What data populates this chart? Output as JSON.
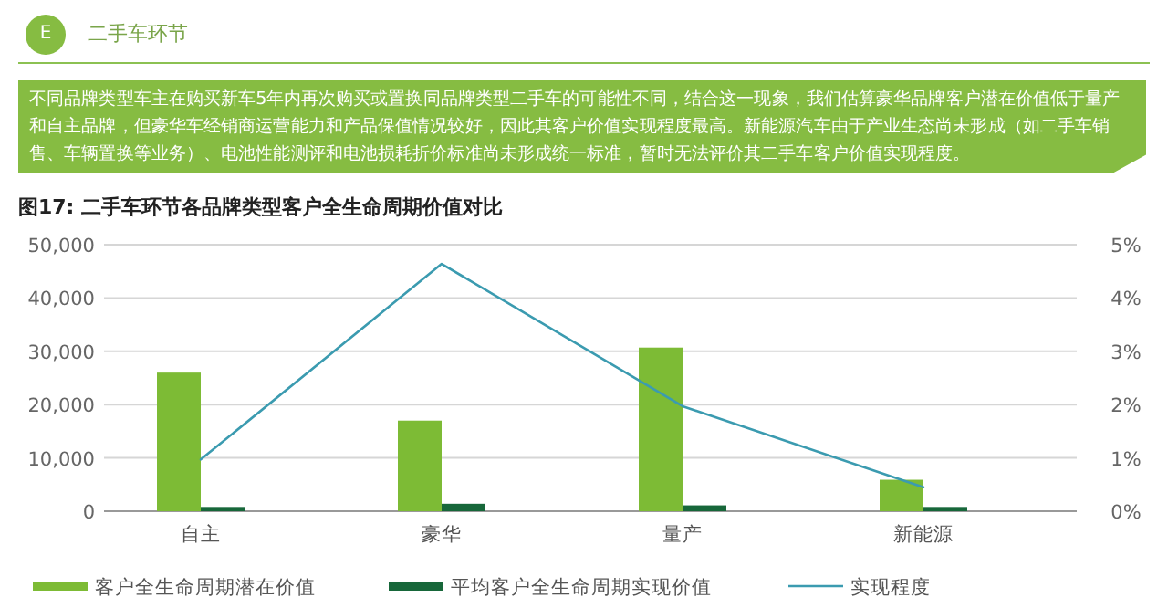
{
  "chart_data": {
    "type": "bar",
    "title": "图17: 二手车环节各品牌类型客户全生命周期价值对比",
    "annotations": [
      "E",
      "二手车环节",
      "不同品牌类型车主在购买新车5年内再次购买或置换同品牌类型二手车的可能性不同，结合这一现象，我们估算豪华品牌客户潜在价值低于量产和自主品牌，但豪华车经销商运营能力和产品保值情况较好，因此其客户价值实现程度最高。新能源汽车由于产业生态尚未形成（如二手车销售、车辆置换等业务）、电池性能测评和电池损耗折价标准尚未形成统一标准，暂时无法评价其二手车客户价值实现程度。"
    ],
    "categories": [
      "自主",
      "豪华",
      "量产",
      "新能源"
    ],
    "series": [
      {
        "name": "客户全生命周期潜在价值",
        "color": "#7dbb35",
        "values": [
          26000,
          17000,
          30700,
          5900
        ]
      },
      {
        "name": "平均客户全生命周期实现价值",
        "color": "#17673a",
        "values": [
          800,
          1400,
          1100,
          800
        ]
      },
      {
        "name": "实现程度",
        "type": "line",
        "axis": "y2",
        "color": "#3b9bb0",
        "values": [
          0.97,
          4.64,
          1.97,
          0.45
        ]
      }
    ],
    "ylim": [
      0,
      50000
    ],
    "yticks": [
      {
        "value": 0,
        "label": "0"
      },
      {
        "value": 10000,
        "label": "10,000"
      },
      {
        "value": 20000,
        "label": "20,000"
      },
      {
        "value": 30000,
        "label": "30,000"
      },
      {
        "value": 40000,
        "label": "40,000"
      },
      {
        "value": 50000,
        "label": "50,000"
      }
    ],
    "y2lim": [
      0,
      5
    ],
    "y2ticks": [
      {
        "value": 0,
        "label": "0%"
      },
      {
        "value": 1,
        "label": "1%"
      },
      {
        "value": 2,
        "label": "2%"
      },
      {
        "value": 3,
        "label": "3%"
      },
      {
        "value": 4,
        "label": "4%"
      },
      {
        "value": 5,
        "label": "5%"
      }
    ],
    "grid": "y",
    "legend": "bottom",
    "marker": "none"
  }
}
